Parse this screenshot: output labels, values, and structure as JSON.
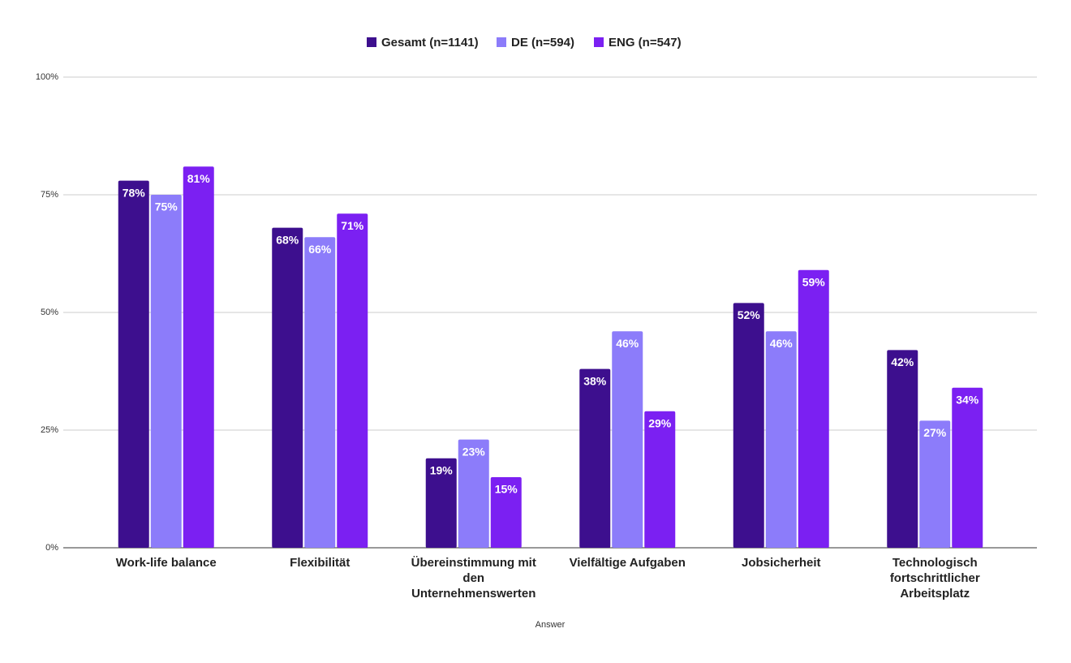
{
  "chart_data": {
    "type": "bar",
    "x_label": "Answer",
    "categories": [
      "Work-life balance",
      "Flexibilität",
      "Übereinstimmung mit den Unternehmenswerten",
      "Vielfältige Aufgaben",
      "Jobsicherheit",
      "Technologisch fortschrittlicher Arbeitsplatz"
    ],
    "series": [
      {
        "name": "Gesamt (n=1141)",
        "color": "#3d0f8e",
        "values": [
          78,
          68,
          19,
          38,
          52,
          42
        ],
        "value_labels": [
          "78%",
          "68%",
          "19%",
          "38%",
          "52%",
          "42%"
        ]
      },
      {
        "name": "DE (n=594)",
        "color": "#8c7cfa",
        "values": [
          75,
          66,
          23,
          46,
          46,
          27
        ],
        "value_labels": [
          "75%",
          "66%",
          "23%",
          "46%",
          "46%",
          "27%"
        ]
      },
      {
        "name": "ENG (n=547)",
        "color": "#7b20f2",
        "values": [
          81,
          71,
          15,
          29,
          59,
          34
        ],
        "value_labels": [
          "81%",
          "71%",
          "15%",
          "29%",
          "59%",
          "34%"
        ]
      }
    ],
    "ylim": [
      0,
      100
    ],
    "yticks": [
      {
        "value": 0,
        "label": "0%"
      },
      {
        "value": 25,
        "label": "25%"
      },
      {
        "value": 50,
        "label": "50%"
      },
      {
        "value": 75,
        "label": "75%"
      },
      {
        "value": 100,
        "label": "100%"
      }
    ],
    "grid": true,
    "legend": "top"
  }
}
